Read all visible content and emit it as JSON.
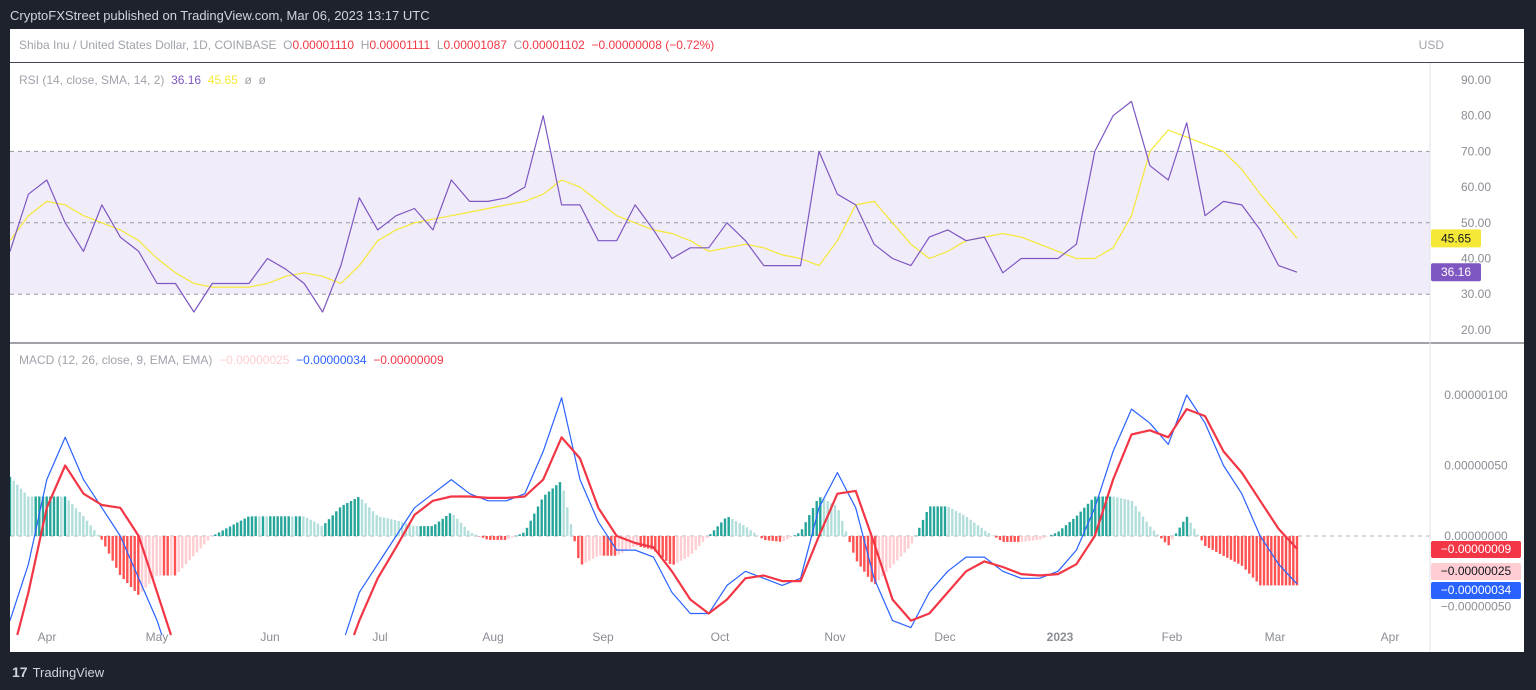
{
  "publisher": "CryptoFXStreet published on TradingView.com, Mar 06, 2023 13:17 UTC",
  "symbol": {
    "name": "Shiba Inu / United States Dollar, 1D, COINBASE",
    "o_label": "O",
    "o": "0.00001110",
    "h_label": "H",
    "h": "0.00001111",
    "l_label": "L",
    "l": "0.00001087",
    "c_label": "C",
    "c": "0.00001102",
    "change": "−0.00000008 (−0.72%)",
    "currency": "USD"
  },
  "rsi": {
    "legend": "RSI (14, close, SMA, 14, 2)",
    "value": "36.16",
    "sma_value": "45.65",
    "extra1": "ø",
    "extra2": "ø",
    "ticks": [
      "90.00",
      "80.00",
      "70.00",
      "60.00",
      "50.00",
      "40.00",
      "30.00",
      "20.00"
    ],
    "tick_values": [
      90,
      80,
      70,
      60,
      50,
      40,
      30,
      20
    ],
    "band": [
      30,
      70
    ],
    "midline": 50,
    "colors": {
      "rsi": "#7e57c2",
      "sma": "#f5e836",
      "band": "#f1ecf9"
    },
    "values": [
      42,
      58,
      62,
      50,
      42,
      55,
      46,
      42,
      33,
      33,
      25,
      33,
      33,
      33,
      40,
      37,
      33,
      25,
      38,
      57,
      48,
      52,
      54,
      48,
      62,
      56,
      56,
      57,
      60,
      80,
      55,
      55,
      45,
      45,
      55,
      48,
      40,
      43,
      43,
      50,
      45,
      38,
      38,
      38,
      70,
      58,
      55,
      44,
      40,
      38,
      46,
      48,
      45,
      46,
      36,
      40,
      40,
      40,
      44,
      70,
      80,
      84,
      66,
      62,
      78,
      52,
      56,
      55,
      48,
      38,
      36.16
    ],
    "sma": [
      45,
      52,
      56,
      55,
      52,
      50,
      48,
      45,
      40,
      36,
      33,
      32,
      32,
      32,
      33,
      35,
      36,
      35,
      33,
      38,
      45,
      48,
      50,
      51,
      52,
      53,
      54,
      55,
      56,
      58,
      62,
      60,
      56,
      52,
      50,
      48,
      47,
      45,
      42,
      43,
      44,
      43,
      41,
      40,
      38,
      45,
      55,
      56,
      50,
      44,
      40,
      42,
      45,
      46,
      47,
      46,
      44,
      42,
      40,
      40,
      43,
      52,
      70,
      76,
      74,
      72,
      70,
      65,
      58,
      52,
      45.65
    ]
  },
  "macd": {
    "legend": "MACD (12, 26, close, 9, EMA, EMA)",
    "hist_value": "−0.00000025",
    "macd_value": "−0.00000034",
    "signal_value": "−0.00000009",
    "ticks": [
      "0.00000100",
      "0.00000050",
      "0.00000000",
      "−0.00000050"
    ],
    "tick_values": [
      100,
      50,
      0,
      -50
    ],
    "unit_note": "values in 1e-8",
    "colors": {
      "macd": "#2962ff",
      "signal": "#f23645",
      "hist_up_strong": "#26a69a",
      "hist_up_weak": "#b2dfdb",
      "hist_down_strong": "#ff5252",
      "hist_down_weak": "#ffcdd2"
    },
    "macd": [
      -60,
      -20,
      40,
      70,
      40,
      20,
      0,
      -30,
      -60,
      -100,
      -130,
      -140,
      -140,
      -130,
      -120,
      -110,
      -100,
      -100,
      -80,
      -40,
      -20,
      0,
      20,
      30,
      40,
      30,
      25,
      25,
      30,
      60,
      98,
      40,
      10,
      -10,
      -10,
      -15,
      -40,
      -55,
      -55,
      -35,
      -25,
      -30,
      -35,
      -30,
      20,
      45,
      20,
      -30,
      -60,
      -65,
      -40,
      -25,
      -15,
      -15,
      -25,
      -30,
      -30,
      -25,
      -10,
      20,
      60,
      90,
      80,
      65,
      100,
      80,
      50,
      30,
      0,
      -20,
      -34
    ],
    "signal": [
      -90,
      -40,
      20,
      50,
      30,
      22,
      20,
      0,
      -40,
      -80,
      -120,
      -140,
      -145,
      -140,
      -130,
      -120,
      -110,
      -105,
      -95,
      -60,
      -30,
      -8,
      15,
      25,
      28,
      28,
      27,
      27,
      28,
      40,
      70,
      55,
      20,
      0,
      -5,
      -8,
      -25,
      -45,
      -55,
      -45,
      -30,
      -28,
      -32,
      -32,
      0,
      30,
      32,
      -5,
      -45,
      -60,
      -55,
      -40,
      -25,
      -18,
      -22,
      -27,
      -28,
      -27,
      -20,
      0,
      40,
      72,
      75,
      70,
      90,
      85,
      60,
      45,
      25,
      5,
      -9
    ]
  },
  "time_axis": [
    "Apr",
    "May",
    "Jun",
    "Jul",
    "Aug",
    "Sep",
    "Oct",
    "Nov",
    "Dec",
    "2023",
    "Feb",
    "Mar",
    "Apr"
  ],
  "brand": "TradingView"
}
